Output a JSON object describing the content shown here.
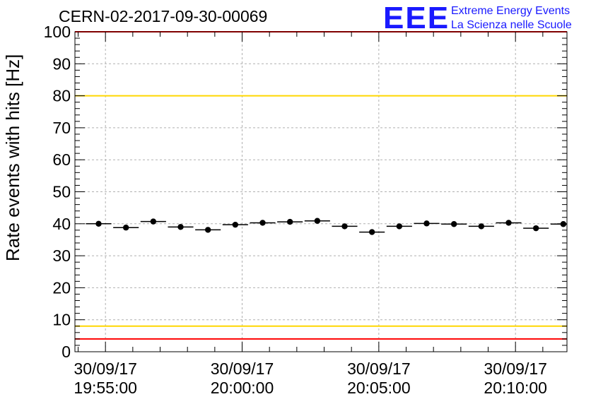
{
  "title": "CERN-02-2017-09-30-00069",
  "logo": {
    "mark": "EEE",
    "line1": "Extreme Energy Events",
    "line2": "La Scienza nelle Scuole",
    "color": "#1a1aff"
  },
  "chart_data": {
    "type": "scatter",
    "ylabel": "Rate events with hits [Hz]",
    "ylim": [
      0,
      100
    ],
    "yticks": [
      0,
      10,
      20,
      30,
      40,
      50,
      60,
      70,
      80,
      90,
      100
    ],
    "x_axis": {
      "unit": "seconds since 19:55:00",
      "range_seconds": [
        -67,
        1013
      ],
      "tick_labels": [
        {
          "t": 0,
          "date": "30/09/17",
          "time": "19:55:00"
        },
        {
          "t": 300,
          "date": "30/09/17",
          "time": "20:00:00"
        },
        {
          "t": 600,
          "date": "30/09/17",
          "time": "20:05:00"
        },
        {
          "t": 900,
          "date": "30/09/17",
          "time": "20:10:00"
        }
      ]
    },
    "grid": true,
    "bin_seconds": 56,
    "points": [
      {
        "t": -15,
        "y": 40.0
      },
      {
        "t": 45,
        "y": 38.8
      },
      {
        "t": 105,
        "y": 40.7
      },
      {
        "t": 165,
        "y": 39.0
      },
      {
        "t": 225,
        "y": 38.1
      },
      {
        "t": 285,
        "y": 39.7
      },
      {
        "t": 345,
        "y": 40.3
      },
      {
        "t": 405,
        "y": 40.6
      },
      {
        "t": 465,
        "y": 40.9
      },
      {
        "t": 525,
        "y": 39.2
      },
      {
        "t": 585,
        "y": 37.4
      },
      {
        "t": 645,
        "y": 39.2
      },
      {
        "t": 705,
        "y": 40.1
      },
      {
        "t": 765,
        "y": 39.9
      },
      {
        "t": 825,
        "y": 39.2
      },
      {
        "t": 885,
        "y": 40.3
      },
      {
        "t": 945,
        "y": 38.6
      },
      {
        "t": 1005,
        "y": 39.9
      }
    ],
    "reference_lines": [
      {
        "y": 100,
        "color": "#ff0000"
      },
      {
        "y": 80,
        "color": "#ffd700"
      },
      {
        "y": 8,
        "color": "#ffd700"
      },
      {
        "y": 4,
        "color": "#ff0000"
      }
    ],
    "marker_color": "#000000"
  }
}
